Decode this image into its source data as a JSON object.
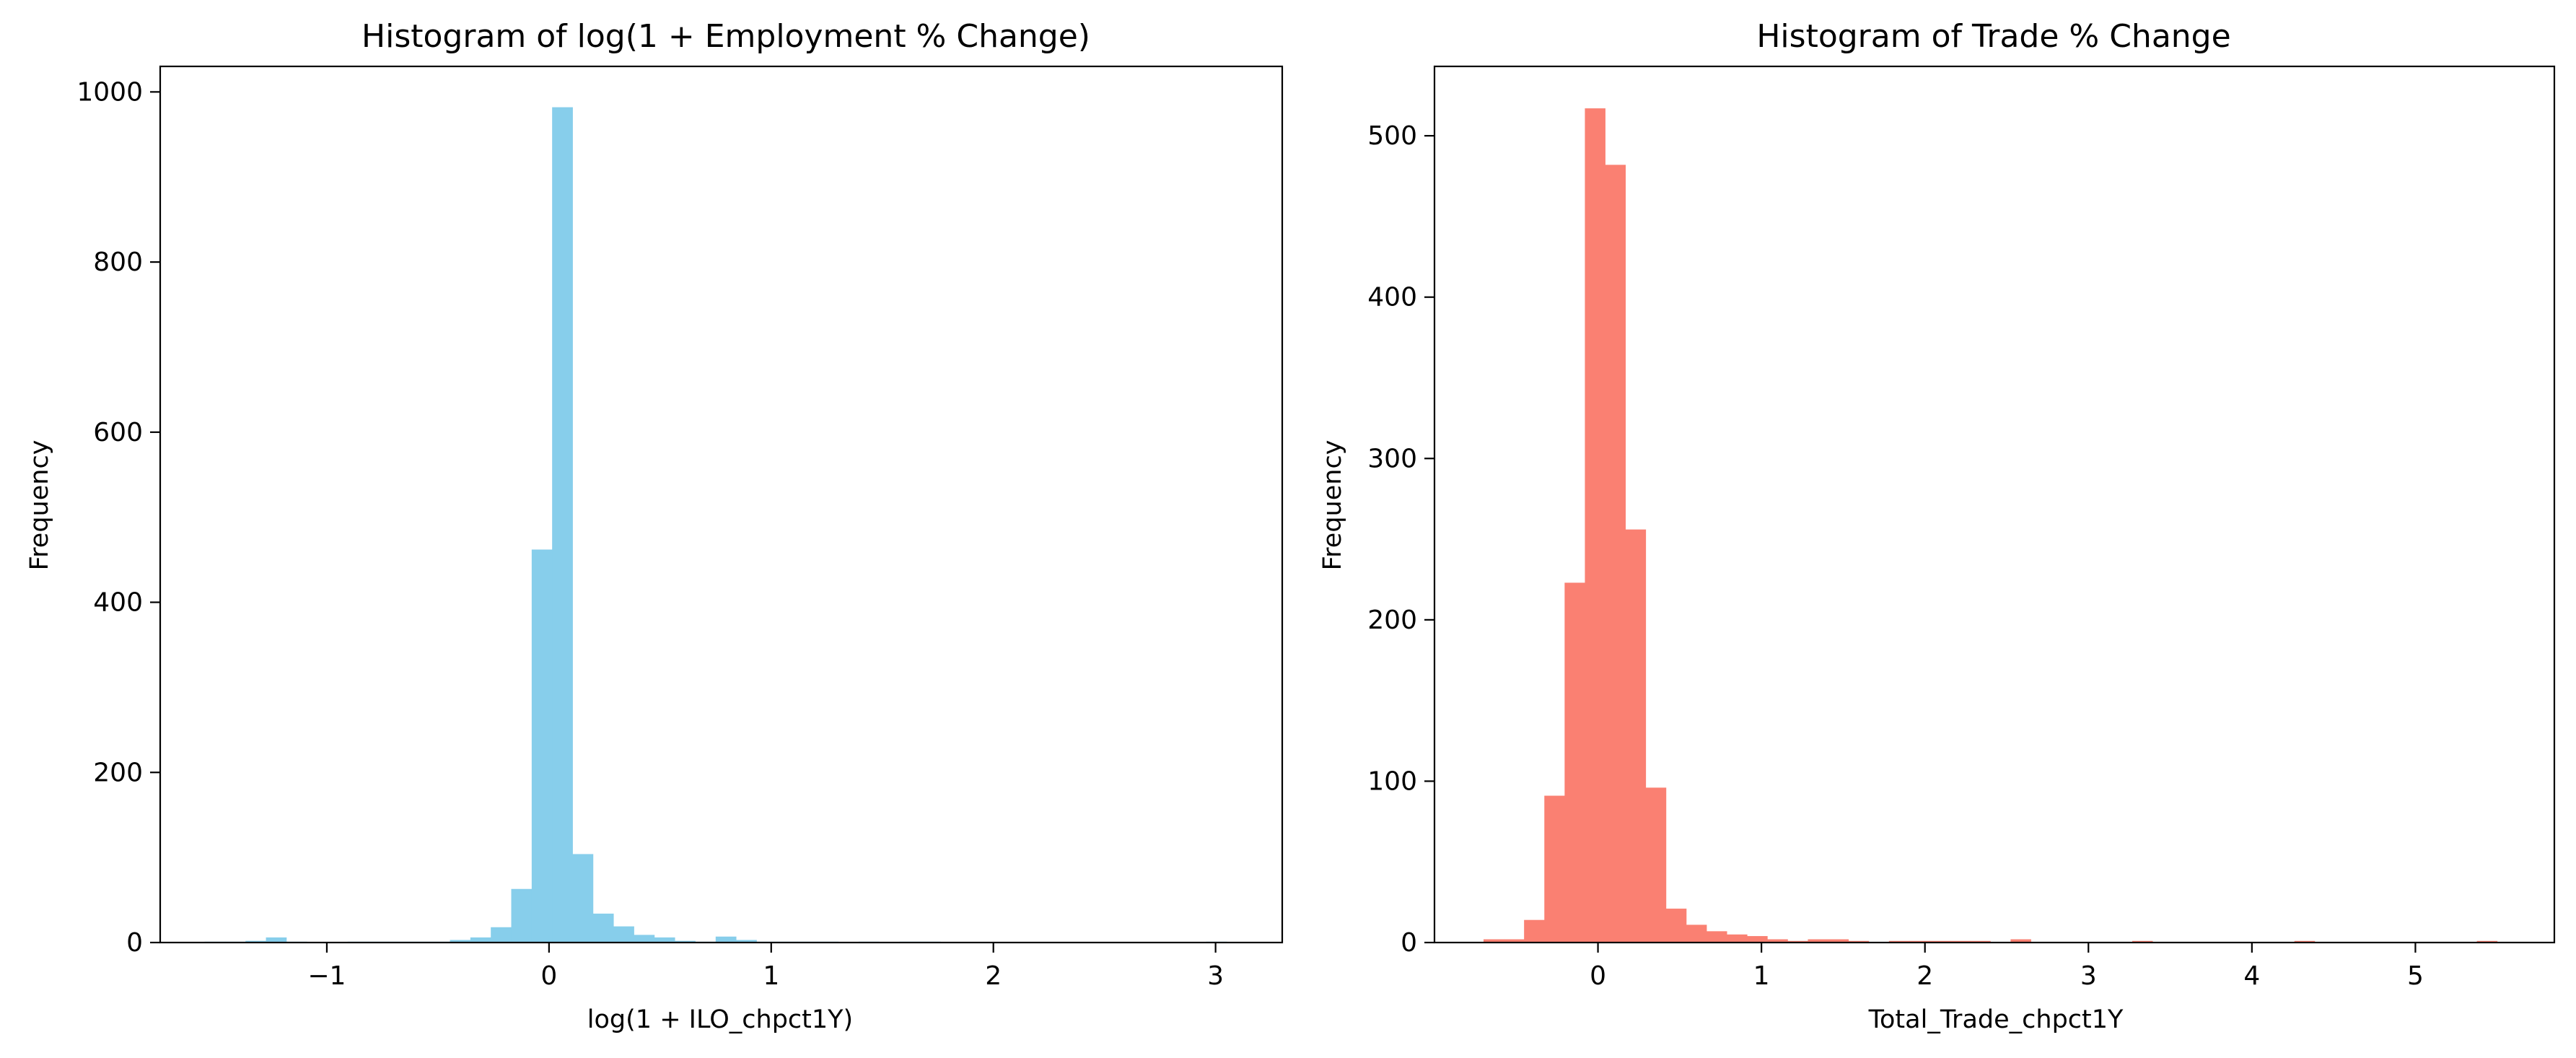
{
  "chart_data": [
    {
      "type": "bar",
      "title": "Histogram of log(1 + Employment % Change)",
      "xlabel": "log(1 + ILO_chpct1Y)",
      "ylabel": "Frequency",
      "xlim": [
        -1.75,
        3.3
      ],
      "ylim": [
        0,
        1030
      ],
      "xticks": [
        -1,
        0,
        1,
        2,
        3
      ],
      "xtick_labels": [
        "−1",
        "0",
        "1",
        "2",
        "3"
      ],
      "yticks": [
        0,
        200,
        400,
        600,
        800,
        1000
      ],
      "ytick_labels": [
        "0",
        "200",
        "400",
        "600",
        "800",
        "1000"
      ],
      "bin_start": -1.55,
      "bin_width": 0.092,
      "values": [
        1,
        1,
        2,
        6,
        1,
        0,
        0,
        1,
        1,
        1,
        1,
        1,
        3,
        6,
        18,
        63,
        462,
        982,
        104,
        34,
        19,
        9,
        6,
        2,
        1,
        7,
        3,
        1,
        1,
        1,
        1,
        0,
        1,
        0,
        1,
        1,
        0,
        0,
        0,
        0,
        0,
        0,
        0,
        0,
        0,
        0,
        0,
        0,
        0,
        1
      ],
      "color": "#87CEEB",
      "grid": false
    },
    {
      "type": "bar",
      "title": "Histogram of Trade % Change",
      "xlabel": "Total_Trade_chpct1Y",
      "ylabel": "Frequency",
      "xlim": [
        -1.0,
        5.85
      ],
      "ylim": [
        0,
        543
      ],
      "xticks": [
        0,
        1,
        2,
        3,
        4,
        5
      ],
      "xtick_labels": [
        "0",
        "1",
        "2",
        "3",
        "4",
        "5"
      ],
      "yticks": [
        0,
        100,
        200,
        300,
        400,
        500
      ],
      "ytick_labels": [
        "0",
        "100",
        "200",
        "300",
        "400",
        "500"
      ],
      "bin_start": -0.7,
      "bin_width": 0.124,
      "values": [
        2,
        2,
        14,
        91,
        223,
        517,
        482,
        256,
        96,
        21,
        11,
        7,
        5,
        4,
        2,
        1,
        2,
        2,
        1,
        0,
        1,
        1,
        1,
        1,
        1,
        0,
        2,
        0,
        0,
        0,
        0,
        0,
        1,
        0,
        0,
        0,
        0,
        0,
        0,
        0,
        1,
        0,
        0,
        0,
        0,
        0,
        0,
        0,
        0,
        1
      ],
      "color": "#FA8072",
      "grid": false
    }
  ]
}
